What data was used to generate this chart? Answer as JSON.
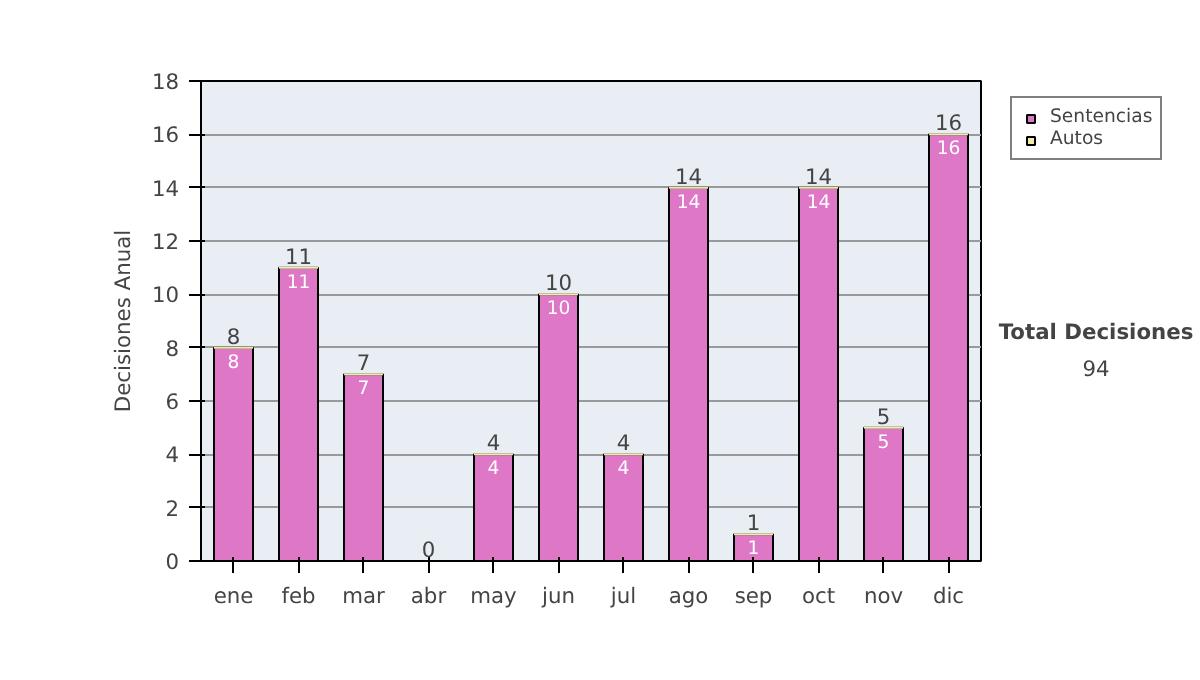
{
  "chart_data": {
    "type": "bar",
    "ylabel": "Decisiones Anual",
    "categories": [
      "ene",
      "feb",
      "mar",
      "abr",
      "may",
      "jun",
      "jul",
      "ago",
      "sep",
      "oct",
      "nov",
      "dic"
    ],
    "series": [
      {
        "name": "Sentencias",
        "color": "#dd77c6",
        "values": [
          8,
          11,
          7,
          0,
          4,
          10,
          4,
          14,
          1,
          14,
          5,
          16
        ],
        "value_labels": [
          "8",
          "11",
          "7",
          null,
          "4",
          "10",
          "4",
          "14",
          "1",
          "14",
          "5",
          "16"
        ]
      },
      {
        "name": "Autos",
        "color": "#eeeeaa",
        "values": [
          0,
          0,
          0,
          0,
          0,
          0,
          0,
          0,
          0,
          0,
          0,
          0
        ]
      }
    ],
    "stacked": true,
    "totals": [
      "8",
      "11",
      "7",
      "0",
      "4",
      "10",
      "4",
      "14",
      "1",
      "14",
      "5",
      "16"
    ],
    "ylim": [
      0,
      18
    ],
    "yticks": [
      0,
      2,
      4,
      6,
      8,
      10,
      12,
      14,
      16,
      18
    ],
    "grid": "y",
    "legend": "right",
    "annotations": [
      "Total Decisiones",
      "94"
    ]
  }
}
